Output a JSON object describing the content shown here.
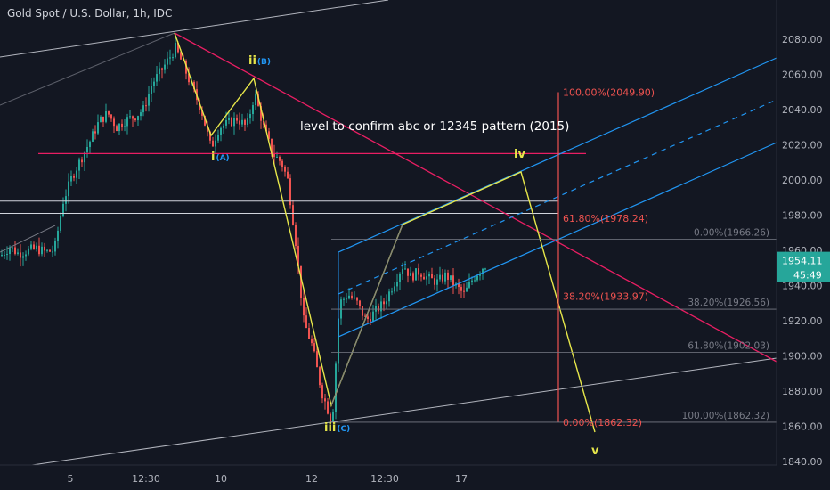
{
  "header": {
    "title": "Gold Spot / U.S. Dollar, 1h, IDC"
  },
  "price_badge": {
    "price": "1954.11",
    "countdown": "45:49"
  },
  "colors": {
    "bg": "#131722",
    "up": "#26a69a",
    "down": "#ef5350",
    "wave": "#e6e64a",
    "channel": "#2196f3",
    "trend": "#e91e63",
    "fib_red": "#ef5350",
    "fib_gray": "#787b86",
    "badge": "#26a69a"
  },
  "chart_data": {
    "type": "candlestick",
    "ylim": [
      1830,
      2090
    ],
    "y_ticks": [
      "1840.00",
      "1860.00",
      "1880.00",
      "1900.00",
      "1920.00",
      "1940.00",
      "1960.00",
      "1980.00",
      "2000.00",
      "2020.00",
      "2040.00",
      "2060.00",
      "2080.00"
    ],
    "x_ticks": [
      "5",
      "12:30",
      "10",
      "12:30",
      "12",
      "12:30",
      "17"
    ],
    "last_price": 1954.11,
    "price_path": [
      [
        0,
        1957
      ],
      [
        10,
        1962
      ],
      [
        20,
        1958
      ],
      [
        30,
        1960
      ],
      [
        40,
        1961
      ],
      [
        50,
        1959
      ],
      [
        60,
        1960
      ],
      [
        70,
        1988
      ],
      [
        80,
        2002
      ],
      [
        90,
        2012
      ],
      [
        100,
        2022
      ],
      [
        110,
        2033
      ],
      [
        120,
        2038
      ],
      [
        130,
        2030
      ],
      [
        140,
        2034
      ],
      [
        150,
        2036
      ],
      [
        160,
        2040
      ],
      [
        170,
        2055
      ],
      [
        180,
        2062
      ],
      [
        190,
        2070
      ],
      [
        196,
        2075
      ],
      [
        205,
        2065
      ],
      [
        215,
        2052
      ],
      [
        225,
        2040
      ],
      [
        236,
        2018
      ],
      [
        245,
        2030
      ],
      [
        255,
        2032
      ],
      [
        265,
        2035
      ],
      [
        276,
        2030
      ],
      [
        285,
        2049
      ],
      [
        295,
        2030
      ],
      [
        305,
        2015
      ],
      [
        315,
        2010
      ],
      [
        322,
        2000
      ],
      [
        330,
        1970
      ],
      [
        340,
        1920
      ],
      [
        350,
        1905
      ],
      [
        360,
        1880
      ],
      [
        372,
        1862
      ],
      [
        380,
        1930
      ],
      [
        390,
        1935
      ],
      [
        400,
        1930
      ],
      [
        410,
        1920
      ],
      [
        420,
        1925
      ],
      [
        430,
        1930
      ],
      [
        440,
        1940
      ],
      [
        452,
        1952
      ],
      [
        460,
        1945
      ],
      [
        470,
        1948
      ],
      [
        480,
        1944
      ],
      [
        490,
        1942
      ],
      [
        500,
        1946
      ],
      [
        510,
        1940
      ],
      [
        520,
        1935
      ],
      [
        530,
        1944
      ],
      [
        540,
        1950
      ],
      [
        545,
        1952
      ]
    ],
    "waves": [
      {
        "label": "i",
        "sub": "(A)",
        "price": 2015
      },
      {
        "label": "ii",
        "sub": "(B)",
        "price": 2049
      },
      {
        "label": "iii",
        "sub": "(C)",
        "price": 1862
      },
      {
        "label": "iv",
        "sub": "",
        "price": 1995
      },
      {
        "label": "v",
        "sub": "",
        "price": 1846
      }
    ],
    "annotation": "level to confirm abc or 12345 pattern (2015)",
    "fib_red": [
      {
        "label": "100.00%(2049.90)",
        "price": 2049.9
      },
      {
        "label": "61.80%(1978.24)",
        "price": 1978.24
      },
      {
        "label": "38.20%(1933.97)",
        "price": 1933.97
      },
      {
        "label": "0.00%(1862.32)",
        "price": 1862.32
      }
    ],
    "fib_gray": [
      {
        "label": "0.00%(1966.26)",
        "price": 1966.26
      },
      {
        "label": "38.20%(1926.56)",
        "price": 1926.56
      },
      {
        "label": "61.80%(1902.03)",
        "price": 1902.03
      },
      {
        "label": "100.00%(1862.32)",
        "price": 1862.32
      }
    ],
    "horizontal_levels": [
      2015,
      1988,
      1981
    ]
  }
}
